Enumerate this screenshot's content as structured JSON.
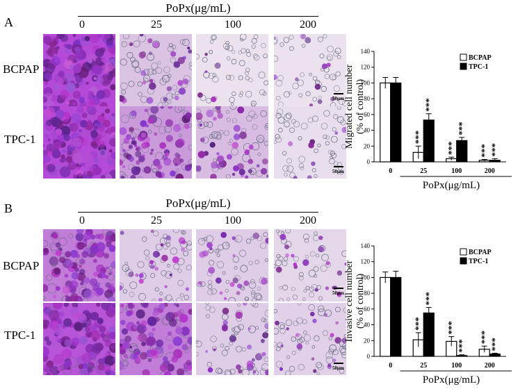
{
  "panels": [
    {
      "letter": "A",
      "dose_title": "PoPx(μg/mL)",
      "doses": [
        "0",
        "25",
        "100",
        "200"
      ],
      "rows": [
        "BCPAP",
        "TPC-1"
      ],
      "scale_label": "50μm",
      "density": [
        [
          1.0,
          0.35,
          0.16,
          0.15
        ],
        [
          1.0,
          0.6,
          0.4,
          0.18
        ]
      ]
    },
    {
      "letter": "B",
      "dose_title": "PoPx(μg/mL)",
      "doses": [
        "0",
        "25",
        "100",
        "200"
      ],
      "rows": [
        "BCPAP",
        "TPC-1"
      ],
      "scale_label": "50μm",
      "density": [
        [
          0.75,
          0.3,
          0.3,
          0.22
        ],
        [
          0.95,
          0.75,
          0.3,
          0.28
        ]
      ]
    }
  ],
  "chart_data": [
    {
      "type": "bar",
      "title": "",
      "categories": [
        "0",
        "25",
        "100",
        "200"
      ],
      "xlabel": "PoPx(μg/mL)",
      "ylabel": "Migrated cell number\n(% of control)",
      "ylim": [
        0,
        140
      ],
      "yticks": [
        "0",
        "20",
        "40",
        "60",
        "80",
        "100",
        "120",
        "140"
      ],
      "legend_position": "top-right",
      "series": [
        {
          "name": "BCPAP",
          "color": "#ffffff",
          "values": [
            100,
            12,
            4,
            2
          ],
          "errors": [
            7,
            8,
            2,
            1
          ]
        },
        {
          "name": "TPC-1",
          "color": "#000000",
          "values": [
            100,
            53,
            27,
            2
          ],
          "errors": [
            7,
            8,
            4,
            2
          ]
        }
      ],
      "annotations": [
        {
          "category": "25",
          "series": "BCPAP",
          "text": "***"
        },
        {
          "category": "25",
          "series": "TPC-1",
          "text": "***"
        },
        {
          "category": "100",
          "series": "BCPAP",
          "text": "***"
        },
        {
          "category": "100",
          "series": "TPC-1",
          "text": "***"
        },
        {
          "category": "200",
          "series": "BCPAP",
          "text": "***"
        },
        {
          "category": "200",
          "series": "TPC-1",
          "text": "***"
        }
      ]
    },
    {
      "type": "bar",
      "title": "",
      "categories": [
        "0",
        "25",
        "100",
        "200"
      ],
      "xlabel": "PoPx(μg/mL)",
      "ylabel": "Invasive cell number\n(% of control)",
      "ylim": [
        0,
        140
      ],
      "yticks": [
        "0",
        "20",
        "40",
        "60",
        "80",
        "100",
        "120",
        "140"
      ],
      "legend_position": "top-right",
      "series": [
        {
          "name": "BCPAP",
          "color": "#ffffff",
          "values": [
            100,
            21,
            19,
            9
          ],
          "errors": [
            7,
            9,
            6,
            4
          ]
        },
        {
          "name": "TPC-1",
          "color": "#000000",
          "values": [
            100,
            55,
            1,
            3
          ],
          "errors": [
            8,
            7,
            1,
            1
          ]
        }
      ],
      "annotations": [
        {
          "category": "25",
          "series": "BCPAP",
          "text": "***"
        },
        {
          "category": "25",
          "series": "TPC-1",
          "text": "***"
        },
        {
          "category": "100",
          "series": "BCPAP",
          "text": "***"
        },
        {
          "category": "100",
          "series": "TPC-1",
          "text": "***"
        },
        {
          "category": "200",
          "series": "BCPAP",
          "text": "***"
        },
        {
          "category": "200",
          "series": "TPC-1",
          "text": "***"
        }
      ]
    }
  ]
}
